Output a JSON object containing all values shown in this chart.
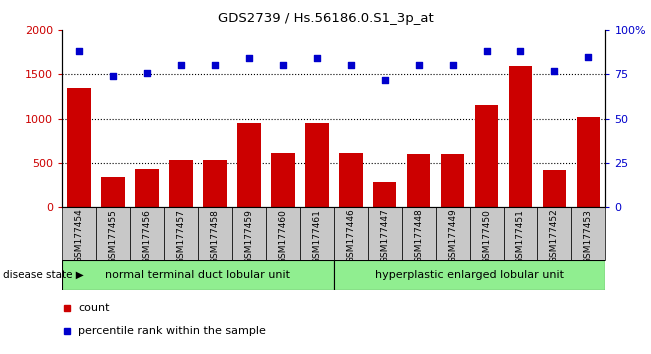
{
  "title": "GDS2739 / Hs.56186.0.S1_3p_at",
  "samples": [
    "GSM177454",
    "GSM177455",
    "GSM177456",
    "GSM177457",
    "GSM177458",
    "GSM177459",
    "GSM177460",
    "GSM177461",
    "GSM177446",
    "GSM177447",
    "GSM177448",
    "GSM177449",
    "GSM177450",
    "GSM177451",
    "GSM177452",
    "GSM177453"
  ],
  "counts": [
    1350,
    340,
    430,
    530,
    530,
    950,
    610,
    950,
    610,
    285,
    600,
    600,
    1150,
    1590,
    415,
    1020
  ],
  "percentiles": [
    88,
    74,
    76,
    80,
    80,
    84,
    80,
    84,
    80,
    72,
    80,
    80,
    88,
    88,
    77,
    85
  ],
  "group1_label": "normal terminal duct lobular unit",
  "group2_label": "hyperplastic enlarged lobular unit",
  "group1_count": 8,
  "group2_count": 8,
  "bar_color": "#cc0000",
  "dot_color": "#0000cc",
  "ylim_left": [
    0,
    2000
  ],
  "ylim_right": [
    0,
    100
  ],
  "yticks_left": [
    0,
    500,
    1000,
    1500,
    2000
  ],
  "yticks_right": [
    0,
    25,
    50,
    75,
    100
  ],
  "ytick_labels_right": [
    "0",
    "25",
    "50",
    "75",
    "100%"
  ],
  "grid_values": [
    500,
    1000,
    1500
  ],
  "group1_color": "#90ee90",
  "group2_color": "#90ee90",
  "disease_state_label": "disease state",
  "legend_count_label": "count",
  "legend_percentile_label": "percentile rank within the sample",
  "bar_width": 0.7,
  "cell_bg_color": "#c8c8c8",
  "plot_bg_color": "#ffffff"
}
